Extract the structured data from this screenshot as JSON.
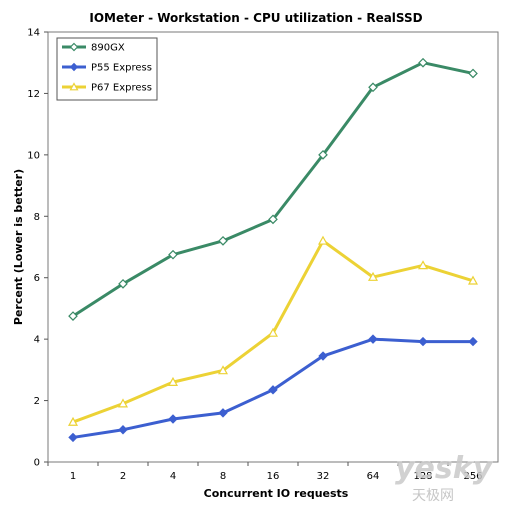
{
  "chart_data": {
    "type": "line",
    "title": "IOMeter - Workstation - CPU utilization - RealSSD",
    "xlabel": "Concurrent IO requests",
    "ylabel": "Percent (Lower is better)",
    "categories": [
      "1",
      "2",
      "4",
      "8",
      "16",
      "32",
      "64",
      "128",
      "256"
    ],
    "ylim": [
      0,
      14
    ],
    "yticks": [
      "0",
      "2",
      "4",
      "6",
      "8",
      "10",
      "12",
      "14"
    ],
    "grid": false,
    "legend_position": "top-left",
    "series": [
      {
        "name": "890GX",
        "color": "#3a8a66",
        "marker": "diamond-open",
        "values": [
          4.75,
          5.8,
          6.75,
          7.2,
          7.9,
          10.0,
          12.2,
          13.0,
          12.65
        ]
      },
      {
        "name": "P55 Express",
        "color": "#3c5fd0",
        "marker": "diamond-filled",
        "values": [
          0.8,
          1.05,
          1.4,
          1.6,
          2.35,
          3.45,
          4.0,
          3.92,
          3.92
        ]
      },
      {
        "name": "P67 Express",
        "color": "#ecd235",
        "marker": "triangle-open",
        "values": [
          1.3,
          1.9,
          2.6,
          2.98,
          4.2,
          7.2,
          6.02,
          6.4,
          5.9
        ]
      }
    ]
  },
  "watermark": {
    "text": "yesky",
    "subtext": "天极网"
  }
}
